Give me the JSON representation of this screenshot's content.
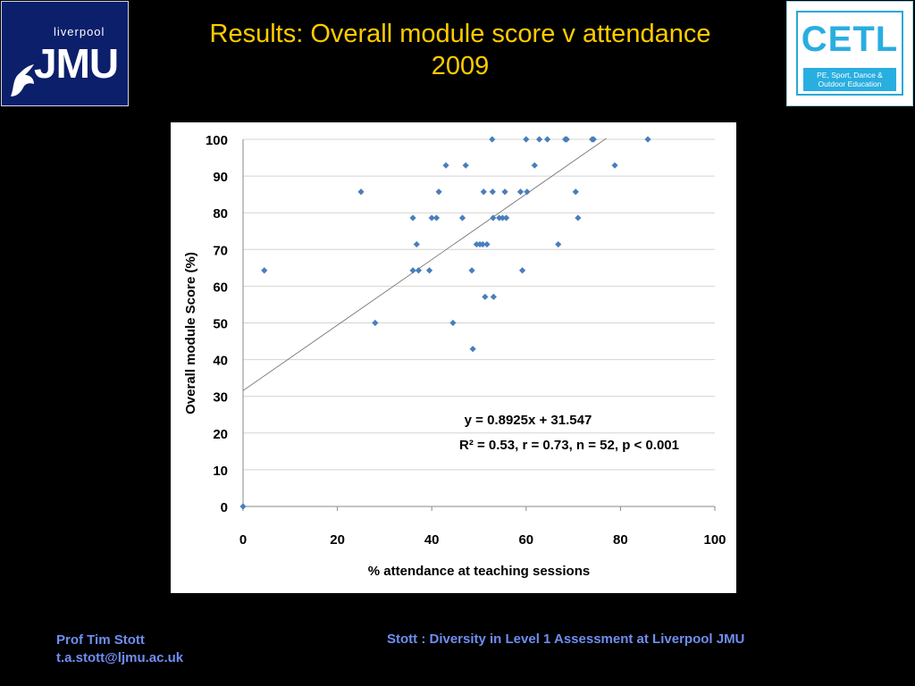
{
  "logos": {
    "left": {
      "small": "liverpool",
      "large": "JMU",
      "colors": {
        "bg": "#0b1f6b",
        "fg": "#ffffff"
      }
    },
    "right": {
      "name": "CETL",
      "tagline": "PE, Sport, Dance & Outdoor Education",
      "colors": {
        "accent": "#29aee0",
        "bg": "#ffffff"
      }
    }
  },
  "title": {
    "line1": "Results: Overall module score v attendance",
    "line2": "2009",
    "color": "#ffcc00"
  },
  "footer": {
    "author": "Prof Tim Stott",
    "email": "t.a.stott@ljmu.ac.uk",
    "citation": "Stott : Diversity in Level 1 Assessment at Liverpool JMU",
    "color": "#6e8ef0"
  },
  "chart_data": {
    "type": "scatter",
    "title": "",
    "xlabel": "% attendance at teaching sessions",
    "ylabel": "Overall module Score (%)",
    "xlim": [
      0,
      100
    ],
    "ylim": [
      0,
      100
    ],
    "xticks": [
      0,
      20,
      40,
      60,
      80,
      100
    ],
    "yticks": [
      0,
      10,
      20,
      30,
      40,
      50,
      60,
      70,
      80,
      90,
      100
    ],
    "grid": "horizontal",
    "marker_color": "#4a7ebb",
    "trendline": {
      "slope": 0.8925,
      "intercept": 31.547,
      "x_range": [
        0,
        77
      ]
    },
    "annotation": {
      "line1": "y = 0.8925x + 31.547",
      "line2": "R² = 0.53, r = 0.73, n = 52, p < 0.001"
    },
    "points": [
      [
        0,
        0
      ],
      [
        4.5,
        64.3
      ],
      [
        25,
        85.7
      ],
      [
        28,
        50
      ],
      [
        36,
        78.6
      ],
      [
        36,
        64.3
      ],
      [
        36.8,
        71.4
      ],
      [
        37.2,
        64.3
      ],
      [
        39.5,
        64.3
      ],
      [
        40,
        78.6
      ],
      [
        41,
        78.6
      ],
      [
        41.5,
        85.7
      ],
      [
        43,
        92.9
      ],
      [
        44.5,
        50
      ],
      [
        46.5,
        78.6
      ],
      [
        47.2,
        92.9
      ],
      [
        48.5,
        64.3
      ],
      [
        48.7,
        42.9
      ],
      [
        49.5,
        71.4
      ],
      [
        50.2,
        71.4
      ],
      [
        50.8,
        71.4
      ],
      [
        51,
        85.7
      ],
      [
        51.3,
        57.1
      ],
      [
        51.7,
        71.4
      ],
      [
        52.8,
        100
      ],
      [
        52.9,
        85.7
      ],
      [
        53,
        78.6
      ],
      [
        53.1,
        57.1
      ],
      [
        54.3,
        78.6
      ],
      [
        55,
        78.6
      ],
      [
        55.5,
        85.7
      ],
      [
        55.8,
        78.6
      ],
      [
        58.8,
        85.7
      ],
      [
        59.2,
        64.3
      ],
      [
        60,
        100
      ],
      [
        60.2,
        85.7
      ],
      [
        61.8,
        92.9
      ],
      [
        62.8,
        100
      ],
      [
        64.5,
        100
      ],
      [
        66.8,
        71.4
      ],
      [
        68.3,
        100
      ],
      [
        68.6,
        100
      ],
      [
        70.5,
        85.7
      ],
      [
        71,
        78.6
      ],
      [
        74,
        100
      ],
      [
        74.3,
        100
      ],
      [
        78.8,
        92.9
      ],
      [
        85.8,
        100
      ]
    ]
  }
}
